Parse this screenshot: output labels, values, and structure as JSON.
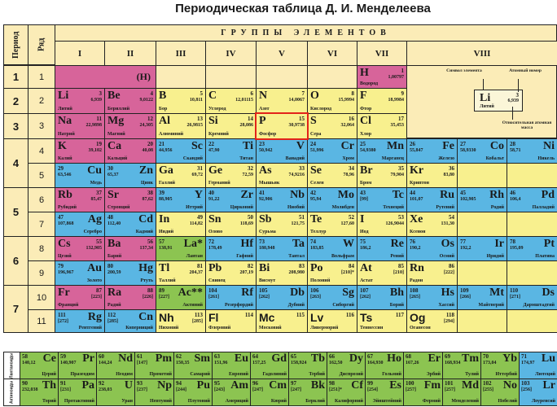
{
  "title": "Периодическая таблица Д. И. Менделеева",
  "header": {
    "period_label": "Период",
    "row_label": "Ряд",
    "groups_label": "ГРУППЫ ЭЛЕМЕНТОВ",
    "groups": [
      "I",
      "II",
      "III",
      "IV",
      "V",
      "VI",
      "VII",
      "VIII"
    ]
  },
  "periods": [
    "1",
    "2",
    "3",
    "4",
    "5",
    "6",
    "7"
  ],
  "rows": [
    "1",
    "2",
    "3",
    "4",
    "5",
    "6",
    "7",
    "8",
    "9",
    "10",
    "11"
  ],
  "h_placeholder": "(H)",
  "elements": [
    {
      "sym": "H",
      "num": "1",
      "mass": "1,00797",
      "name": "Водород",
      "type": "s",
      "align": "L"
    },
    {
      "sym": "He",
      "num": "2",
      "mass": "4,0026",
      "name": "Гелий",
      "type": "s",
      "align": "L"
    },
    {
      "sym": "Li",
      "num": "3",
      "mass": "6,939",
      "name": "Литий",
      "type": "s",
      "align": "L"
    },
    {
      "sym": "Be",
      "num": "4",
      "mass": "9,0122",
      "name": "Бериллий",
      "type": "s",
      "align": "L"
    },
    {
      "sym": "B",
      "num": "5",
      "mass": "10,811",
      "name": "Бор",
      "type": "p",
      "align": "L"
    },
    {
      "sym": "C",
      "num": "6",
      "mass": "12,01115",
      "name": "Углерод",
      "type": "p",
      "align": "L"
    },
    {
      "sym": "N",
      "num": "7",
      "mass": "14,0067",
      "name": "Азот",
      "type": "p",
      "align": "L"
    },
    {
      "sym": "O",
      "num": "8",
      "mass": "15,9994",
      "name": "Кислород",
      "type": "p",
      "align": "L"
    },
    {
      "sym": "F",
      "num": "9",
      "mass": "18,9984",
      "name": "Фтор",
      "type": "p",
      "align": "L"
    },
    {
      "sym": "Ne",
      "num": "10",
      "mass": "20,179",
      "name": "Неон",
      "type": "p",
      "align": "L"
    },
    {
      "sym": "Na",
      "num": "11",
      "mass": "22,9898",
      "name": "Натрий",
      "type": "s",
      "align": "L"
    },
    {
      "sym": "Mg",
      "num": "12",
      "mass": "24,305",
      "name": "Магний",
      "type": "s",
      "align": "L"
    },
    {
      "sym": "Al",
      "num": "13",
      "mass": "26,9815",
      "name": "Алюминий",
      "type": "p",
      "align": "L"
    },
    {
      "sym": "Si",
      "num": "14",
      "mass": "28,086",
      "name": "Кремний",
      "type": "p",
      "align": "L"
    },
    {
      "sym": "P",
      "num": "15",
      "mass": "30,9738",
      "name": "Фосфор",
      "type": "p",
      "align": "L"
    },
    {
      "sym": "S",
      "num": "16",
      "mass": "32,064",
      "name": "Сера",
      "type": "p",
      "align": "L"
    },
    {
      "sym": "Cl",
      "num": "17",
      "mass": "35,453",
      "name": "Хлор",
      "type": "p",
      "align": "L"
    },
    {
      "sym": "Ar",
      "num": "18",
      "mass": "39,948",
      "name": "Аргон",
      "type": "p",
      "align": "L"
    },
    {
      "sym": "K",
      "num": "19",
      "mass": "39,102",
      "name": "Калий",
      "type": "s",
      "align": "L"
    },
    {
      "sym": "Ca",
      "num": "20",
      "mass": "40,08",
      "name": "Кальций",
      "type": "s",
      "align": "L"
    },
    {
      "sym": "Sc",
      "num": "21",
      "mass": "44,956",
      "name": "Скандий",
      "type": "d",
      "align": "R"
    },
    {
      "sym": "Ti",
      "num": "22",
      "mass": "47,90",
      "name": "Титан",
      "type": "d",
      "align": "R"
    },
    {
      "sym": "V",
      "num": "23",
      "mass": "50,942",
      "name": "Ванадий",
      "type": "d",
      "align": "R"
    },
    {
      "sym": "Cr",
      "num": "24",
      "mass": "51,996",
      "name": "Хром",
      "type": "d",
      "align": "R"
    },
    {
      "sym": "Mn",
      "num": "25",
      "mass": "54,9380",
      "name": "Марганец",
      "type": "d",
      "align": "R"
    },
    {
      "sym": "Fe",
      "num": "26",
      "mass": "55,847",
      "name": "Железо",
      "type": "d",
      "align": "R"
    },
    {
      "sym": "Co",
      "num": "27",
      "mass": "58,9330",
      "name": "Кобальт",
      "type": "d",
      "align": "R"
    },
    {
      "sym": "Ni",
      "num": "28",
      "mass": "58,71",
      "name": "Никель",
      "type": "d",
      "align": "R"
    },
    {
      "sym": "Cu",
      "num": "29",
      "mass": "63,546",
      "name": "Медь",
      "type": "d",
      "align": "R"
    },
    {
      "sym": "Zn",
      "num": "30",
      "mass": "65,37",
      "name": "Цинк",
      "type": "d",
      "align": "R"
    },
    {
      "sym": "Ga",
      "num": "31",
      "mass": "69,72",
      "name": "Галлий",
      "type": "p",
      "align": "L"
    },
    {
      "sym": "Ge",
      "num": "32",
      "mass": "72,59",
      "name": "Германий",
      "type": "p",
      "align": "L"
    },
    {
      "sym": "As",
      "num": "33",
      "mass": "74,9216",
      "name": "Мышьяк",
      "type": "p",
      "align": "L"
    },
    {
      "sym": "Se",
      "num": "34",
      "mass": "78,96",
      "name": "Селен",
      "type": "p",
      "align": "L"
    },
    {
      "sym": "Br",
      "num": "35",
      "mass": "79,904",
      "name": "Бром",
      "type": "p",
      "align": "L"
    },
    {
      "sym": "Kr",
      "num": "36",
      "mass": "83,80",
      "name": "Криптон",
      "type": "p",
      "align": "L"
    },
    {
      "sym": "Rb",
      "num": "37",
      "mass": "85,47",
      "name": "Рубидий",
      "type": "s",
      "align": "L"
    },
    {
      "sym": "Sr",
      "num": "38",
      "mass": "87,62",
      "name": "Стронций",
      "type": "s",
      "align": "L"
    },
    {
      "sym": "Y",
      "num": "39",
      "mass": "88,905",
      "name": "Иттрий",
      "type": "d",
      "align": "R"
    },
    {
      "sym": "Zr",
      "num": "40",
      "mass": "91,22",
      "name": "Цирконий",
      "type": "d",
      "align": "R"
    },
    {
      "sym": "Nb",
      "num": "41",
      "mass": "92,906",
      "name": "Ниобий",
      "type": "d",
      "align": "R"
    },
    {
      "sym": "Mo",
      "num": "42",
      "mass": "95,94",
      "name": "Молибден",
      "type": "d",
      "align": "R"
    },
    {
      "sym": "Tc",
      "num": "43",
      "mass": "[99]",
      "name": "Технеций",
      "type": "d",
      "align": "R"
    },
    {
      "sym": "Ru",
      "num": "44",
      "mass": "101,07",
      "name": "Рутений",
      "type": "d",
      "align": "R"
    },
    {
      "sym": "Rh",
      "num": "45",
      "mass": "102,905",
      "name": "Родий",
      "type": "d",
      "align": "R"
    },
    {
      "sym": "Pd",
      "num": "46",
      "mass": "106,4",
      "name": "Палладий",
      "type": "d",
      "align": "R"
    },
    {
      "sym": "Ag",
      "num": "47",
      "mass": "107,868",
      "name": "Серебро",
      "type": "d",
      "align": "R"
    },
    {
      "sym": "Cd",
      "num": "48",
      "mass": "112,40",
      "name": "Кадмий",
      "type": "d",
      "align": "R"
    },
    {
      "sym": "In",
      "num": "49",
      "mass": "114,82",
      "name": "Индий",
      "type": "p",
      "align": "L"
    },
    {
      "sym": "Sn",
      "num": "50",
      "mass": "118,69",
      "name": "Олово",
      "type": "p",
      "align": "L"
    },
    {
      "sym": "Sb",
      "num": "51",
      "mass": "121,75",
      "name": "Сурьма",
      "type": "p",
      "align": "L"
    },
    {
      "sym": "Te",
      "num": "52",
      "mass": "127,60",
      "name": "Теллур",
      "type": "p",
      "align": "L"
    },
    {
      "sym": "I",
      "num": "53",
      "mass": "126,9044",
      "name": "Иод",
      "type": "p",
      "align": "L"
    },
    {
      "sym": "Xe",
      "num": "54",
      "mass": "131,30",
      "name": "Ксенон",
      "type": "p",
      "align": "L"
    },
    {
      "sym": "Cs",
      "num": "55",
      "mass": "132,905",
      "name": "Цезий",
      "type": "s",
      "align": "L"
    },
    {
      "sym": "Ba",
      "num": "56",
      "mass": "137,34",
      "name": "Барий",
      "type": "s",
      "align": "L"
    },
    {
      "sym": "La*",
      "num": "57",
      "mass": "138,91",
      "name": "Лантан",
      "type": "f",
      "align": "R"
    },
    {
      "sym": "Hf",
      "num": "72",
      "mass": "178,49",
      "name": "Гафний",
      "type": "d",
      "align": "R"
    },
    {
      "sym": "Ta",
      "num": "73",
      "mass": "180,948",
      "name": "Тантал",
      "type": "d",
      "align": "R"
    },
    {
      "sym": "W",
      "num": "74",
      "mass": "183,85",
      "name": "Вольфрам",
      "type": "d",
      "align": "R"
    },
    {
      "sym": "Re",
      "num": "75",
      "mass": "186,2",
      "name": "Рений",
      "type": "d",
      "align": "R"
    },
    {
      "sym": "Os",
      "num": "76",
      "mass": "190,2",
      "name": "Осмий",
      "type": "d",
      "align": "R"
    },
    {
      "sym": "Ir",
      "num": "77",
      "mass": "192,2",
      "name": "Иридий",
      "type": "d",
      "align": "R"
    },
    {
      "sym": "Pt",
      "num": "78",
      "mass": "195,09",
      "name": "Платина",
      "type": "d",
      "align": "R"
    },
    {
      "sym": "Au",
      "num": "79",
      "mass": "196,967",
      "name": "Золото",
      "type": "d",
      "align": "R"
    },
    {
      "sym": "Hg",
      "num": "80",
      "mass": "200,59",
      "name": "Ртуть",
      "type": "d",
      "align": "R"
    },
    {
      "sym": "Tl",
      "num": "81",
      "mass": "204,37",
      "name": "Таллий",
      "type": "p",
      "align": "L"
    },
    {
      "sym": "Pb",
      "num": "82",
      "mass": "207,19",
      "name": "Свинец",
      "type": "p",
      "align": "L"
    },
    {
      "sym": "Bi",
      "num": "83",
      "mass": "208,980",
      "name": "Висмут",
      "type": "p",
      "align": "L"
    },
    {
      "sym": "Po",
      "num": "84",
      "mass": "[210]*",
      "name": "Полоний",
      "type": "p",
      "align": "L"
    },
    {
      "sym": "At",
      "num": "85",
      "mass": "[210]",
      "name": "Астат",
      "type": "p",
      "align": "L"
    },
    {
      "sym": "Rn",
      "num": "86",
      "mass": "[222]",
      "name": "Радон",
      "type": "p",
      "align": "L"
    },
    {
      "sym": "Fr",
      "num": "87",
      "mass": "[223]",
      "name": "Франций",
      "type": "s",
      "align": "L"
    },
    {
      "sym": "Ra",
      "num": "88",
      "mass": "[226]",
      "name": "Радий",
      "type": "s",
      "align": "L"
    },
    {
      "sym": "Ac**",
      "num": "89",
      "mass": "[227]",
      "name": "Актиний",
      "type": "f",
      "align": "R"
    },
    {
      "sym": "Rf",
      "num": "104",
      "mass": "[261]",
      "name": "Резерфордий",
      "type": "d",
      "align": "R"
    },
    {
      "sym": "Db",
      "num": "105",
      "mass": "[262]",
      "name": "Дубний",
      "type": "d",
      "align": "R"
    },
    {
      "sym": "Sg",
      "num": "106",
      "mass": "[263]",
      "name": "Сиборгий",
      "type": "d",
      "align": "R"
    },
    {
      "sym": "Bh",
      "num": "107",
      "mass": "[262]",
      "name": "Борий",
      "type": "d",
      "align": "R"
    },
    {
      "sym": "Hs",
      "num": "108",
      "mass": "[265]",
      "name": "Хассий",
      "type": "d",
      "align": "R"
    },
    {
      "sym": "Mt",
      "num": "109",
      "mass": "[266]",
      "name": "Майтнерий",
      "type": "d",
      "align": "R"
    },
    {
      "sym": "Ds",
      "num": "110",
      "mass": "[271]",
      "name": "Дармштадтий",
      "type": "d",
      "align": "R"
    },
    {
      "sym": "Rg",
      "num": "111",
      "mass": "[272]",
      "name": "Рентгений",
      "type": "d",
      "align": "R"
    },
    {
      "sym": "Cn",
      "num": "112",
      "mass": "[285]",
      "name": "Коперниций",
      "type": "d",
      "align": "R"
    },
    {
      "sym": "Nh",
      "num": "113",
      "mass": "[285]",
      "name": "Нихоний",
      "type": "p",
      "align": "L",
      "sans": true
    },
    {
      "sym": "Fl",
      "num": "114",
      "mass": "",
      "name": "Флеровий",
      "type": "p",
      "align": "L",
      "sans": true
    },
    {
      "sym": "Mc",
      "num": "115",
      "mass": "",
      "name": "Московий",
      "type": "p",
      "align": "L",
      "sans": true
    },
    {
      "sym": "Lv",
      "num": "116",
      "mass": "",
      "name": "Ливерморий",
      "type": "p",
      "align": "L",
      "sans": true
    },
    {
      "sym": "Ts",
      "num": "117",
      "mass": "",
      "name": "Теннессин",
      "type": "p",
      "align": "L",
      "sans": true
    },
    {
      "sym": "Og",
      "num": "118",
      "mass": "[294]",
      "name": "Оганесон",
      "type": "p",
      "align": "L",
      "sans": true
    }
  ],
  "legend": {
    "symbol_label": "Символ элемента",
    "number_label": "Атомный номер",
    "mass_label": "Относительная атомная масса",
    "example_symbol": "Li",
    "example_number": "3",
    "example_mass": "6,939",
    "example_name": "Литий"
  },
  "f_block": {
    "lanthanides_label": "Лантаноиды",
    "actinides_label": "Актиноиды",
    "lanthanides": [
      {
        "sym": "Ce",
        "num": "58",
        "mass": "140,12",
        "name": "Церий"
      },
      {
        "sym": "Pr",
        "num": "59",
        "mass": "140,907",
        "name": "Празеодим"
      },
      {
        "sym": "Nd",
        "num": "60",
        "mass": "144,24",
        "name": "Неодим"
      },
      {
        "sym": "Pm",
        "num": "61",
        "mass": "[147]",
        "name": "Прометий"
      },
      {
        "sym": "Sm",
        "num": "62",
        "mass": "150,35",
        "name": "Самарий"
      },
      {
        "sym": "Eu",
        "num": "63",
        "mass": "151,96",
        "name": "Европий"
      },
      {
        "sym": "Gd",
        "num": "64",
        "mass": "157,25",
        "name": "Гадолиний"
      },
      {
        "sym": "Tb",
        "num": "65",
        "mass": "158,924",
        "name": "Тербий"
      },
      {
        "sym": "Dy",
        "num": "66",
        "mass": "162,50",
        "name": "Диспрозий"
      },
      {
        "sym": "Ho",
        "num": "67",
        "mass": "164,930",
        "name": "Гольмий"
      },
      {
        "sym": "Er",
        "num": "68",
        "mass": "167,26",
        "name": "Эрбий"
      },
      {
        "sym": "Tm",
        "num": "69",
        "mass": "168,934",
        "name": "Тулий"
      },
      {
        "sym": "Yb",
        "num": "70",
        "mass": "173,04",
        "name": "Иттербий"
      },
      {
        "sym": "Lu",
        "num": "71",
        "mass": "174,97",
        "name": "Лютеций"
      }
    ],
    "actinides": [
      {
        "sym": "Th",
        "num": "90",
        "mass": "232,038",
        "name": "Торий"
      },
      {
        "sym": "Pa",
        "num": "91",
        "mass": "[231]",
        "name": "Протактиний"
      },
      {
        "sym": "U",
        "num": "92",
        "mass": "238,03",
        "name": "Уран"
      },
      {
        "sym": "Np",
        "num": "93",
        "mass": "[237]",
        "name": "Нептуний"
      },
      {
        "sym": "Pu",
        "num": "94",
        "mass": "[244]",
        "name": "Плутоний"
      },
      {
        "sym": "Am",
        "num": "95",
        "mass": "[243]",
        "name": "Америций"
      },
      {
        "sym": "Cm",
        "num": "96",
        "mass": "[247]",
        "name": "Кюрий"
      },
      {
        "sym": "Bk",
        "num": "97",
        "mass": "[247]",
        "name": "Берклий"
      },
      {
        "sym": "Cf",
        "num": "98",
        "mass": "[251]*",
        "name": "Калифорний"
      },
      {
        "sym": "Es",
        "num": "99",
        "mass": "[254]",
        "name": "Эйнштейний"
      },
      {
        "sym": "Fm",
        "num": "100",
        "mass": "[257]",
        "name": "Фермий"
      },
      {
        "sym": "Md",
        "num": "101",
        "mass": "[257]",
        "name": "Менделевий"
      },
      {
        "sym": "No",
        "num": "102",
        "mass": "[255]",
        "name": "Нобелий"
      },
      {
        "sym": "Lr",
        "num": "103",
        "mass": "[256]",
        "name": "Лоуренсий"
      }
    ]
  },
  "colors": {
    "s_block": "#d7649a",
    "p_block": "#f8f08e",
    "d_block": "#5ab6e3",
    "f_block": "#8cc451",
    "header": "#fbecb7",
    "highlight": "#e2231a"
  }
}
